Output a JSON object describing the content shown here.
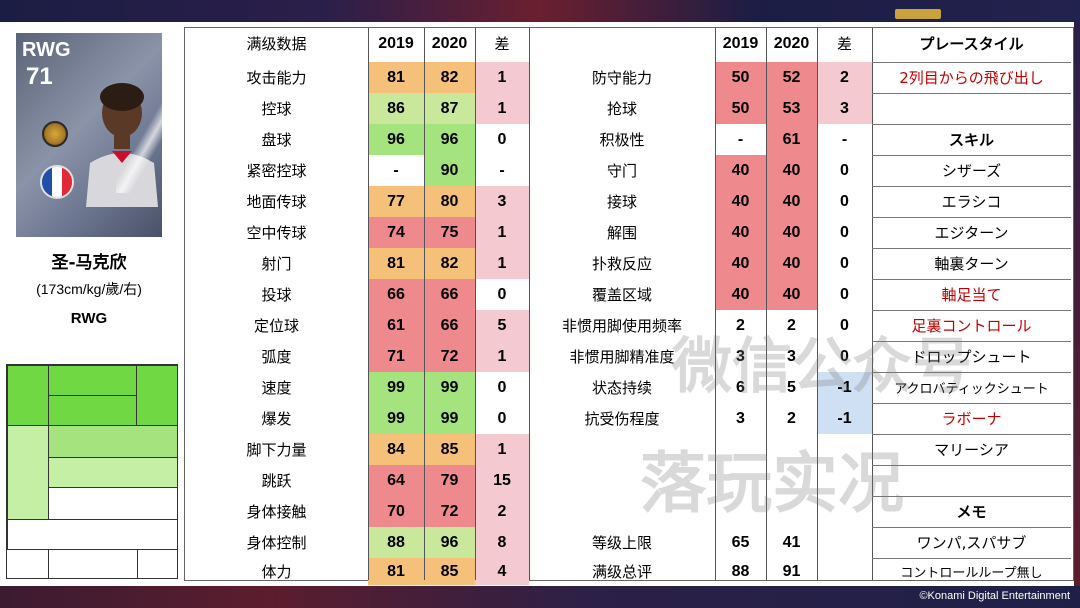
{
  "player": {
    "position": "RWG",
    "rating": "71",
    "name": "圣-马克欣",
    "info": "(173cm/kg/歲/右)",
    "position_label": "RWG"
  },
  "colors": {
    "green_dark": "#76d055",
    "green": "#a5e37f",
    "green_light": "#c6efa6",
    "yellow_green": "#c9e89b",
    "orange": "#f5c07a",
    "red": "#ee8a8e",
    "pink": "#f4c9cf",
    "blue": "#cfe0f5",
    "grey_bg": "#e6e6e6",
    "japanese_red": "#c00000"
  },
  "table": {
    "left_header": "满级数据",
    "col_2019": "2019",
    "col_2020": "2020",
    "col_diff": "差",
    "left_rows": [
      {
        "label": "攻击能力",
        "v2019": "81",
        "v2020": "82",
        "diff": "1",
        "c": "orange"
      },
      {
        "label": "控球",
        "v2019": "86",
        "v2020": "87",
        "diff": "1",
        "c": "yellow_green"
      },
      {
        "label": "盘球",
        "v2019": "96",
        "v2020": "96",
        "diff": "0",
        "c": "green"
      },
      {
        "label": "紧密控球",
        "v2019": "-",
        "v2020": "90",
        "diff": "-",
        "c": "green"
      },
      {
        "label": "地面传球",
        "v2019": "77",
        "v2020": "80",
        "diff": "3",
        "c": "orange"
      },
      {
        "label": "空中传球",
        "v2019": "74",
        "v2020": "75",
        "diff": "1",
        "c": "red"
      },
      {
        "label": "射门",
        "v2019": "81",
        "v2020": "82",
        "diff": "1",
        "c": "orange"
      },
      {
        "label": "投球",
        "v2019": "66",
        "v2020": "66",
        "diff": "0",
        "c": "red"
      },
      {
        "label": "定位球",
        "v2019": "61",
        "v2020": "66",
        "diff": "5",
        "c": "red"
      },
      {
        "label": "弧度",
        "v2019": "71",
        "v2020": "72",
        "diff": "1",
        "c": "red"
      },
      {
        "label": "速度",
        "v2019": "99",
        "v2020": "99",
        "diff": "0",
        "c": "green"
      },
      {
        "label": "爆发",
        "v2019": "99",
        "v2020": "99",
        "diff": "0",
        "c": "green"
      },
      {
        "label": "脚下力量",
        "v2019": "84",
        "v2020": "85",
        "diff": "1",
        "c": "orange"
      },
      {
        "label": "跳跃",
        "v2019": "64",
        "v2020": "79",
        "diff": "15",
        "c": "red"
      },
      {
        "label": "身体接触",
        "v2019": "70",
        "v2020": "72",
        "diff": "2",
        "c": "red"
      },
      {
        "label": "身体控制",
        "v2019": "88",
        "v2020": "96",
        "diff": "8",
        "c": "yellow_green"
      },
      {
        "label": "体力",
        "v2019": "81",
        "v2020": "85",
        "diff": "4",
        "c": "orange"
      }
    ],
    "right_rows": [
      {
        "label": "防守能力",
        "v2019": "50",
        "v2020": "52",
        "diff": "2",
        "c": "red",
        "dc": "pink"
      },
      {
        "label": "抢球",
        "v2019": "50",
        "v2020": "53",
        "diff": "3",
        "c": "red",
        "dc": "pink"
      },
      {
        "label": "积极性",
        "v2019": "-",
        "v2020": "61",
        "diff": "-",
        "c": "red",
        "dc": "none"
      },
      {
        "label": "守门",
        "v2019": "40",
        "v2020": "40",
        "diff": "0",
        "c": "red",
        "dc": "none"
      },
      {
        "label": "接球",
        "v2019": "40",
        "v2020": "40",
        "diff": "0",
        "c": "red",
        "dc": "none"
      },
      {
        "label": "解围",
        "v2019": "40",
        "v2020": "40",
        "diff": "0",
        "c": "red",
        "dc": "none"
      },
      {
        "label": "扑救反应",
        "v2019": "40",
        "v2020": "40",
        "diff": "0",
        "c": "red",
        "dc": "none"
      },
      {
        "label": "覆盖区域",
        "v2019": "40",
        "v2020": "40",
        "diff": "0",
        "c": "red",
        "dc": "none"
      },
      {
        "label": "非惯用脚使用频率",
        "v2019": "2",
        "v2020": "2",
        "diff": "0",
        "c": "none",
        "dc": "none"
      },
      {
        "label": "非惯用脚精准度",
        "v2019": "3",
        "v2020": "3",
        "diff": "0",
        "c": "none",
        "dc": "none"
      },
      {
        "label": "状态持续",
        "v2019": "6",
        "v2020": "5",
        "diff": "-1",
        "c": "none",
        "dc": "blue"
      },
      {
        "label": "抗受伤程度",
        "v2019": "3",
        "v2020": "2",
        "diff": "-1",
        "c": "none",
        "dc": "blue"
      }
    ],
    "level_cap": {
      "label": "等级上限",
      "v2019": "65",
      "v2020": "41"
    },
    "max_overall": {
      "label": "满级总评",
      "v2019": "88",
      "v2020": "91"
    }
  },
  "japanese": {
    "play_style_header": "プレースタイル",
    "play_style": "2列目からの飛び出し",
    "skills_header": "スキル",
    "skills": [
      {
        "name": "シザーズ",
        "red": false
      },
      {
        "name": "エラシコ",
        "red": false
      },
      {
        "name": "エジターン",
        "red": false
      },
      {
        "name": "軸裏ターン",
        "red": false
      },
      {
        "name": "軸足当て",
        "red": true
      },
      {
        "name": "足裏コントロール",
        "red": true
      },
      {
        "name": "ドロップシュート",
        "red": false
      },
      {
        "name": "アクロバティックシュート",
        "red": false
      },
      {
        "name": "ラボーナ",
        "red": true
      },
      {
        "name": "マリーシア",
        "red": false
      }
    ],
    "memo_header": "メモ",
    "memo": [
      "ワンパ,スパサブ",
      "コントロールループ無し"
    ]
  },
  "watermark": {
    "line1": "微信公众号",
    "line2": "落玩实况"
  },
  "footer": {
    "copyright": "©Konami Digital Entertainment"
  },
  "icons": [
    "club-badge-icon",
    "coin-icon",
    "france-flag-icon",
    "player-portrait"
  ]
}
